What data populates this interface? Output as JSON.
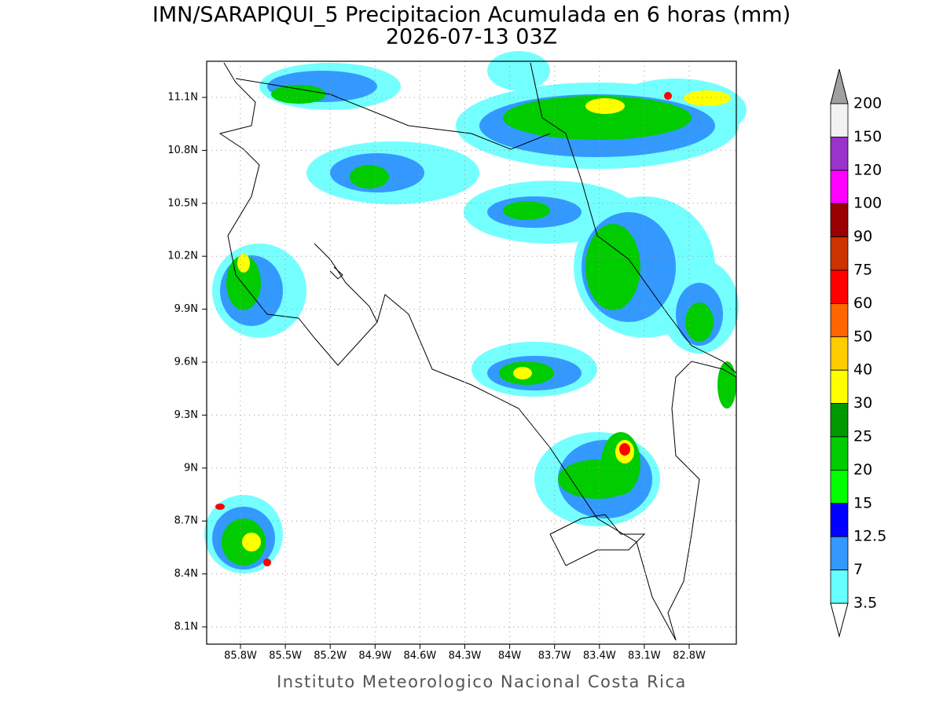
{
  "title": "IMN/SARAPIQUI_5 Precipitacion Acumulada en 6 horas (mm)",
  "subtitle": "2026-07-13 03Z",
  "map": {
    "lat_labels": [
      "11.1N",
      "10.8N",
      "10.5N",
      "10.2N",
      "9.9N",
      "9.6N",
      "9.3N",
      "9N",
      "8.7N",
      "8.4N",
      "8.1N"
    ],
    "lon_labels": [
      "85.8W",
      "85.5W",
      "85.2W",
      "84.9W",
      "84.6W",
      "84.3W",
      "84W",
      "83.7W",
      "83.4W",
      "83.1W",
      "82.8W"
    ]
  },
  "colorbar": {
    "labels": [
      "200",
      "150",
      "120",
      "100",
      "90",
      "75",
      "60",
      "50",
      "40",
      "30",
      "25",
      "20",
      "15",
      "12.5",
      "7",
      "3.5"
    ],
    "colors": [
      "#f2f2f2",
      "#9933cc",
      "#ff00ff",
      "#990000",
      "#cc3300",
      "#ff0000",
      "#ff6600",
      "#ffcc00",
      "#ffff00",
      "#009900",
      "#00cc00",
      "#00ff00",
      "#0000ff",
      "#3399ff",
      "#66ffff"
    ],
    "above_color": "#a0a0a0",
    "below_color": "#ffffff"
  },
  "footer": "Instituto Meteorologico Nacional Costa Rica"
}
